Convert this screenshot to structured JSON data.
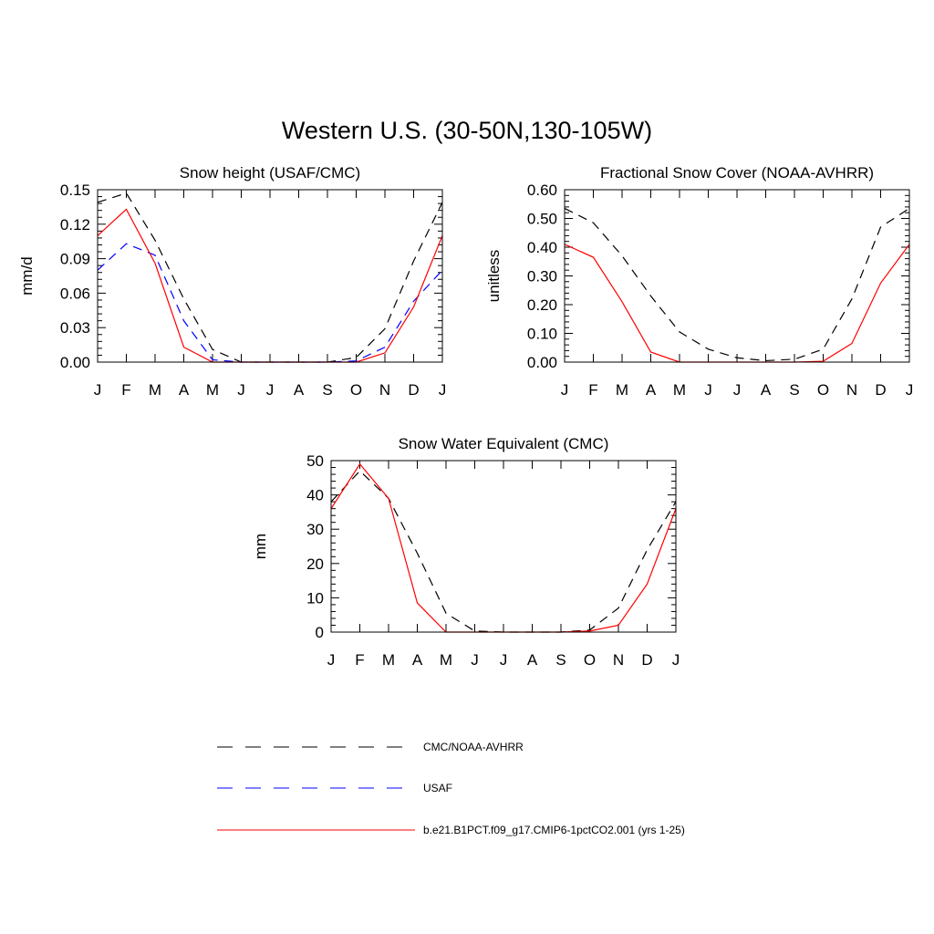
{
  "title": "Western U.S. (30-50N,130-105W)",
  "months": [
    "J",
    "F",
    "M",
    "A",
    "M",
    "J",
    "J",
    "A",
    "S",
    "O",
    "N",
    "D",
    "J"
  ],
  "legend": [
    {
      "label": "CMC/NOAA-AVHRR",
      "color": "#000000",
      "dash": "dashed"
    },
    {
      "label": "USAF",
      "color": "#0000ff",
      "dash": "dashed"
    },
    {
      "label": "b.e21.B1PCT.f09_g17.CMIP6-1pctCO2.001 (yrs 1-25)",
      "color": "#ff0000",
      "dash": "solid"
    }
  ],
  "chart_data": [
    {
      "type": "line",
      "title": "Snow height (USAF/CMC)",
      "ylabel": "mm/d",
      "ylim": [
        0,
        0.15
      ],
      "yticks": [
        "0.00",
        "0.03",
        "0.06",
        "0.09",
        "0.12",
        "0.15"
      ],
      "categories": [
        "J",
        "F",
        "M",
        "A",
        "M",
        "J",
        "J",
        "A",
        "S",
        "O",
        "N",
        "D",
        "J"
      ],
      "series": [
        {
          "name": "CMC/NOAA-AVHRR",
          "color": "#000000",
          "dash": "dashed",
          "values": [
            0.139,
            0.147,
            0.106,
            0.055,
            0.011,
            0.0,
            0.0,
            0.0,
            0.0,
            0.004,
            0.029,
            0.088,
            0.139
          ]
        },
        {
          "name": "USAF",
          "color": "#0000ff",
          "dash": "dashed",
          "values": [
            0.08,
            0.103,
            0.093,
            0.036,
            0.002,
            0.0,
            0.0,
            0.0,
            0.0,
            0.001,
            0.013,
            0.053,
            0.08
          ]
        },
        {
          "name": "b.e21.B1PCT.f09_g17.CMIP6-1pctCO2.001 (yrs 1-25)",
          "color": "#ff0000",
          "dash": "solid",
          "values": [
            0.11,
            0.133,
            0.086,
            0.013,
            0.0,
            0.0,
            0.0,
            0.0,
            0.0,
            0.0,
            0.008,
            0.048,
            0.11
          ]
        }
      ]
    },
    {
      "type": "line",
      "title": "Fractional Snow Cover (NOAA-AVHRR)",
      "ylabel": "unitless",
      "ylim": [
        0,
        0.6
      ],
      "yticks": [
        "0.00",
        "0.10",
        "0.20",
        "0.30",
        "0.40",
        "0.50",
        "0.60"
      ],
      "categories": [
        "J",
        "F",
        "M",
        "A",
        "M",
        "J",
        "J",
        "A",
        "S",
        "O",
        "N",
        "D",
        "J"
      ],
      "series": [
        {
          "name": "CMC/NOAA-AVHRR",
          "color": "#000000",
          "dash": "dashed",
          "values": [
            0.535,
            0.485,
            0.37,
            0.23,
            0.105,
            0.045,
            0.015,
            0.005,
            0.01,
            0.045,
            0.22,
            0.47,
            0.535
          ]
        },
        {
          "name": "b.e21.B1PCT.f09_g17.CMIP6-1pctCO2.001 (yrs 1-25)",
          "color": "#ff0000",
          "dash": "solid",
          "values": [
            0.41,
            0.365,
            0.21,
            0.035,
            0.0,
            0.0,
            0.0,
            0.0,
            0.0,
            0.003,
            0.065,
            0.275,
            0.41
          ]
        }
      ]
    },
    {
      "type": "line",
      "title": "Snow Water Equivalent (CMC)",
      "ylabel": "mm",
      "ylim": [
        0,
        50
      ],
      "yticks": [
        "0",
        "10",
        "20",
        "30",
        "40",
        "50"
      ],
      "categories": [
        "J",
        "F",
        "M",
        "A",
        "M",
        "J",
        "J",
        "A",
        "S",
        "O",
        "N",
        "D",
        "J"
      ],
      "series": [
        {
          "name": "CMC/NOAA-AVHRR",
          "color": "#000000",
          "dash": "dashed",
          "values": [
            38,
            47,
            39,
            23,
            5.5,
            0.3,
            0.0,
            0.0,
            0.0,
            0.6,
            7,
            24,
            38
          ]
        },
        {
          "name": "b.e21.B1PCT.f09_g17.CMIP6-1pctCO2.001 (yrs 1-25)",
          "color": "#ff0000",
          "dash": "solid",
          "values": [
            36,
            49,
            39,
            8.5,
            0.0,
            0.0,
            0.0,
            0.0,
            0.0,
            0.3,
            2,
            14,
            36
          ]
        }
      ]
    }
  ]
}
